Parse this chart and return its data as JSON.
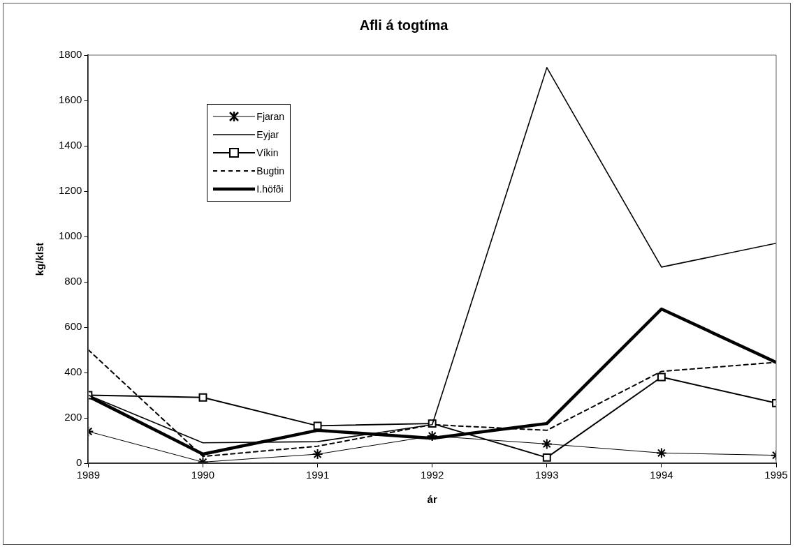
{
  "chart_data": {
    "type": "line",
    "title": "Afli á togtíma",
    "xlabel": "ár",
    "ylabel": "kg/klst",
    "x": [
      1989,
      1990,
      1991,
      1992,
      1993,
      1994,
      1995
    ],
    "xlim": [
      1989,
      1995
    ],
    "xticks": [
      1989,
      1990,
      1991,
      1992,
      1993,
      1994,
      1995
    ],
    "ylim": [
      0,
      1800
    ],
    "yticks": [
      0,
      200,
      400,
      600,
      800,
      1000,
      1200,
      1400,
      1600,
      1800
    ],
    "grid": false,
    "legend": "top left",
    "series": [
      {
        "name": "Fjaran",
        "color": "#000000",
        "marker": "cross",
        "line_style": "solid",
        "values": [
          140,
          5,
          40,
          120,
          85,
          45,
          35
        ]
      },
      {
        "name": "Eyjar",
        "color": "#000000",
        "marker": "none",
        "line_style": "solid",
        "values": [
          300,
          90,
          95,
          170,
          1745,
          865,
          970
        ]
      },
      {
        "name": "Víkin",
        "color": "#000000",
        "marker": "square",
        "line_style": "solid",
        "values": [
          300,
          290,
          165,
          175,
          25,
          380,
          265
        ]
      },
      {
        "name": "Bugtin",
        "color": "#000000",
        "marker": "none",
        "line_style": "dashed",
        "values": [
          500,
          30,
          75,
          170,
          145,
          405,
          445
        ]
      },
      {
        "name": "I.höfði",
        "color": "#000000",
        "marker": "none",
        "line_style": "solid",
        "values": [
          295,
          40,
          145,
          110,
          175,
          680,
          445
        ]
      }
    ]
  }
}
